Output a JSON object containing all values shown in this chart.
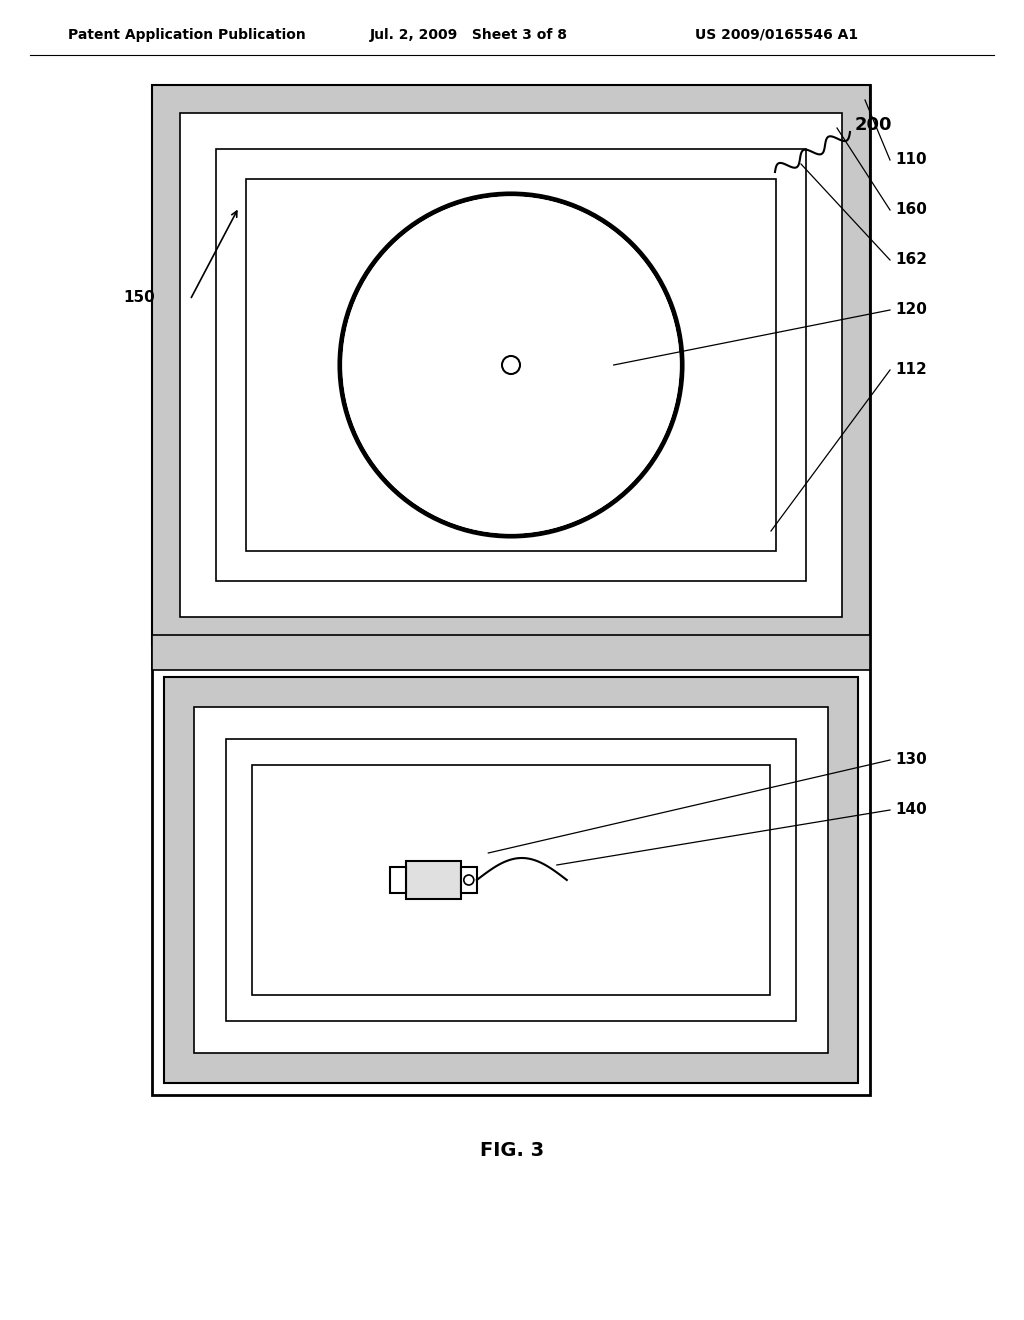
{
  "bg_color": "#ffffff",
  "header_left": "Patent Application Publication",
  "header_mid": "Jul. 2, 2009   Sheet 3 of 8",
  "header_right": "US 2009/0165546 A1",
  "fig_label": "FIG. 3",
  "ref_200": "200",
  "ref_110": "110",
  "ref_160": "160",
  "ref_162": "162",
  "ref_120": "120",
  "ref_112": "112",
  "ref_150": "150",
  "ref_130": "130",
  "ref_140": "140",
  "shaded_color": "#c8c8c8",
  "line_color": "#000000",
  "font_size_header": 10,
  "font_size_ref": 11
}
